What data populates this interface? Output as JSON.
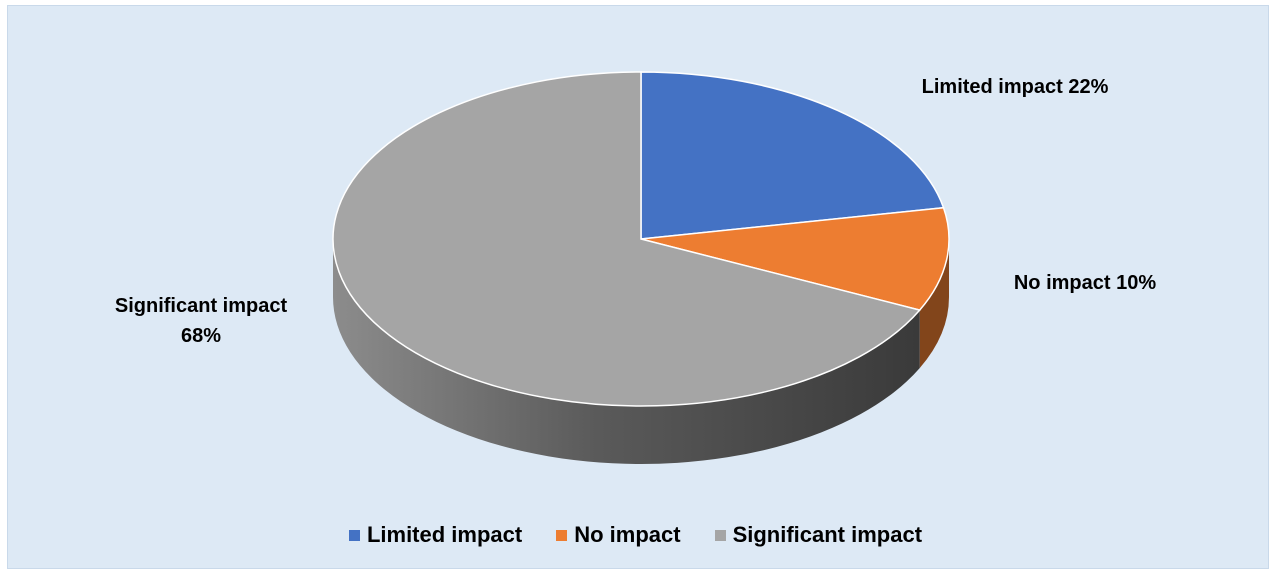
{
  "chart_data": {
    "type": "pie",
    "title": "",
    "slices": [
      {
        "label": "Limited impact",
        "value": 22,
        "color": "#4472c4",
        "data_label": [
          "Limited impact 22%"
        ]
      },
      {
        "label": "No impact",
        "value": 10,
        "color": "#ed7d31",
        "data_label": [
          "No impact 10%"
        ]
      },
      {
        "label": "Significant impact",
        "value": 68,
        "color": "#a5a5a5",
        "data_label": [
          "Significant impact",
          "68%"
        ]
      }
    ],
    "legend_position": "bottom",
    "style": "3d"
  },
  "legend": [
    {
      "label": "Limited impact",
      "color": "#4472c4"
    },
    {
      "label": "No impact",
      "color": "#ed7d31"
    },
    {
      "label": "Significant impact",
      "color": "#a5a5a5"
    }
  ]
}
